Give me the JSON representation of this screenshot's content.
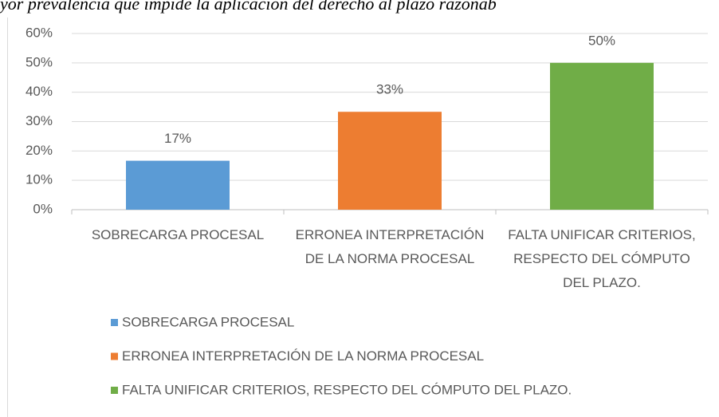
{
  "chart_data": {
    "type": "bar",
    "title": "yor prevalencia que impide la aplicación del derecho al plazo razonab",
    "categories": [
      "SOBRECARGA PROCESAL",
      "ERRONEA INTERPRETACIÓN DE LA NORMA PROCESAL",
      "FALTA UNIFICAR CRITERIOS, RESPECTO DEL CÓMPUTO DEL PLAZO."
    ],
    "values": [
      16.67,
      33.33,
      50
    ],
    "value_labels": [
      "17%",
      "33%",
      "50%"
    ],
    "colors": [
      "#5b9bd5",
      "#ed7d31",
      "#70ad47"
    ],
    "ylim": [
      0,
      60
    ],
    "yticks": [
      {
        "value": 0,
        "label": "0%"
      },
      {
        "value": 10,
        "label": "10%"
      },
      {
        "value": 20,
        "label": "20%"
      },
      {
        "value": 30,
        "label": "30%"
      },
      {
        "value": 40,
        "label": "40%"
      },
      {
        "value": 50,
        "label": "50%"
      },
      {
        "value": 60,
        "label": "60%"
      }
    ],
    "grid": true
  }
}
